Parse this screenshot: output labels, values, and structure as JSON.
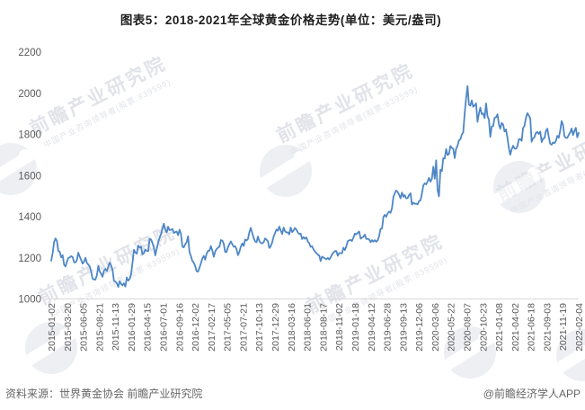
{
  "title": "图表5：2018-2021年全球黄金价格走势(单位：美元/盎司)",
  "footer": {
    "source": "资料来源：世界黄金协会 前瞻产业研究院",
    "credit": "@前瞻经济学人APP"
  },
  "watermark": {
    "text": "前瞻产业研究院",
    "subtext": "中国产业咨询领导者(股票:839599)"
  },
  "colors": {
    "line": "#4d86c6",
    "axis_line": "#d9d9d9",
    "axis_label": "#595959",
    "title": "#1f1f1f",
    "footer": "#666666"
  },
  "chart_data": {
    "type": "line",
    "title": "图表5：2018-2021年全球黄金价格走势(单位：美元/盎司)",
    "xlabel": "",
    "ylabel": "美元/盎司",
    "ylim": [
      1000,
      2200
    ],
    "yticks": [
      2200,
      2000,
      1800,
      1600,
      1400,
      1200,
      1000
    ],
    "grid": false,
    "legend": "none",
    "x_start": "2015-01-02",
    "x_end": "2022-02-04",
    "frequency": "weekly",
    "tick_labels": [
      "2015-01-02",
      "2015-03-20",
      "2015-06-05",
      "2015-08-21",
      "2015-11-13",
      "2016-01-29",
      "2016-04-15",
      "2016-07-01",
      "2016-09-16",
      "2016-12-02",
      "2017-02-17",
      "2017-05-05",
      "2017-07-21",
      "2017-10-13",
      "2017-12-29",
      "2018-03-16",
      "2018-06-01",
      "2018-08-17",
      "2018-11-02",
      "2019-01-18",
      "2019-04-12",
      "2019-06-28",
      "2019-09-13",
      "2019-12-06",
      "2020-03-06",
      "2020-05-22",
      "2020-08-07",
      "2020-10-23",
      "2021-01-08",
      "2021-04-02",
      "2021-06-18",
      "2021-09-03",
      "2021-11-19",
      "2022-02-04"
    ],
    "series": [
      {
        "name": "全球黄金价格",
        "values": [
          1186,
          1223,
          1277,
          1294,
          1283,
          1234,
          1229,
          1202,
          1213,
          1167,
          1158,
          1182,
          1199,
          1202,
          1208,
          1204,
          1179,
          1178,
          1189,
          1225,
          1206,
          1190,
          1172,
          1181,
          1200,
          1175,
          1168,
          1158,
          1134,
          1099,
          1095,
          1094,
          1115,
          1160,
          1134,
          1122,
          1108,
          1139,
          1146,
          1136,
          1157,
          1177,
          1164,
          1142,
          1089,
          1084,
          1077,
          1058,
          1086,
          1074,
          1066,
          1076,
          1060,
          1104,
          1089,
          1097,
          1118,
          1174,
          1239,
          1226,
          1220,
          1259,
          1250,
          1255,
          1217,
          1222,
          1240,
          1234,
          1232,
          1293,
          1289,
          1273,
          1252,
          1212,
          1244,
          1274,
          1298,
          1315,
          1341,
          1366,
          1337,
          1323,
          1351,
          1335,
          1336,
          1340,
          1321,
          1325,
          1328,
          1310,
          1337,
          1316,
          1254,
          1251,
          1266,
          1276,
          1305,
          1227,
          1208,
          1184,
          1177,
          1160,
          1134,
          1133,
          1152,
          1173,
          1197,
          1210,
          1191,
          1220,
          1234,
          1235,
          1257,
          1235,
          1205,
          1230,
          1243,
          1249,
          1254,
          1286,
          1284,
          1268,
          1228,
          1228,
          1252,
          1267,
          1280,
          1266,
          1254,
          1256,
          1242,
          1213,
          1229,
          1255,
          1270,
          1258,
          1289,
          1284,
          1291,
          1325,
          1346,
          1320,
          1297,
          1280,
          1276,
          1304,
          1281,
          1273,
          1270,
          1276,
          1294,
          1288,
          1281,
          1248,
          1256,
          1275,
          1303,
          1320,
          1338,
          1332,
          1352,
          1333,
          1316,
          1347,
          1329,
          1323,
          1324,
          1314,
          1347,
          1325,
          1333,
          1345,
          1336,
          1323,
          1315,
          1318,
          1291,
          1301,
          1293,
          1299,
          1279,
          1271,
          1253,
          1256,
          1241,
          1231,
          1223,
          1215,
          1211,
          1184,
          1206,
          1201,
          1197,
          1193,
          1200,
          1192,
          1203,
          1217,
          1226,
          1233,
          1233,
          1210,
          1223,
          1223,
          1222,
          1249,
          1238,
          1256,
          1281,
          1285,
          1287,
          1282,
          1298,
          1318,
          1314,
          1322,
          1328,
          1293,
          1298,
          1302,
          1313,
          1292,
          1292,
          1290,
          1276,
          1286,
          1279,
          1286,
          1278,
          1285,
          1305,
          1341,
          1342,
          1399,
          1409,
          1399,
          1416,
          1425,
          1419,
          1441,
          1497,
          1514,
          1527,
          1520,
          1507,
          1489,
          1517,
          1497,
          1505,
          1489,
          1490,
          1505,
          1514,
          1459,
          1468,
          1462,
          1464,
          1460,
          1476,
          1479,
          1511,
          1552,
          1562,
          1557,
          1571,
          1589,
          1570,
          1584,
          1643,
          1585,
          1674,
          1530,
          1499,
          1628,
          1621,
          1684,
          1683,
          1729,
          1700,
          1704,
          1744,
          1735,
          1730,
          1685,
          1731,
          1744,
          1771,
          1776,
          1799,
          1810,
          1902,
          1976,
          2035,
          1945,
          1940,
          1965,
          1934,
          1941,
          1951,
          1861,
          1900,
          1930,
          1899,
          1902,
          1879,
          1951,
          1889,
          1871,
          1788,
          1839,
          1840,
          1881,
          1883,
          1898,
          1849,
          1828,
          1856,
          1848,
          1814,
          1824,
          1784,
          1734,
          1701,
          1727,
          1745,
          1732,
          1730,
          1744,
          1777,
          1777,
          1769,
          1831,
          1843,
          1881,
          1903,
          1892,
          1878,
          1764,
          1781,
          1787,
          1808,
          1812,
          1802,
          1814,
          1763,
          1780,
          1781,
          1817,
          1828,
          1788,
          1754,
          1750,
          1761,
          1757,
          1768,
          1793,
          1784,
          1818,
          1865,
          1846,
          1792,
          1783,
          1783,
          1798,
          1809,
          1829,
          1797,
          1817,
          1832,
          1786,
          1808
        ]
      }
    ]
  }
}
